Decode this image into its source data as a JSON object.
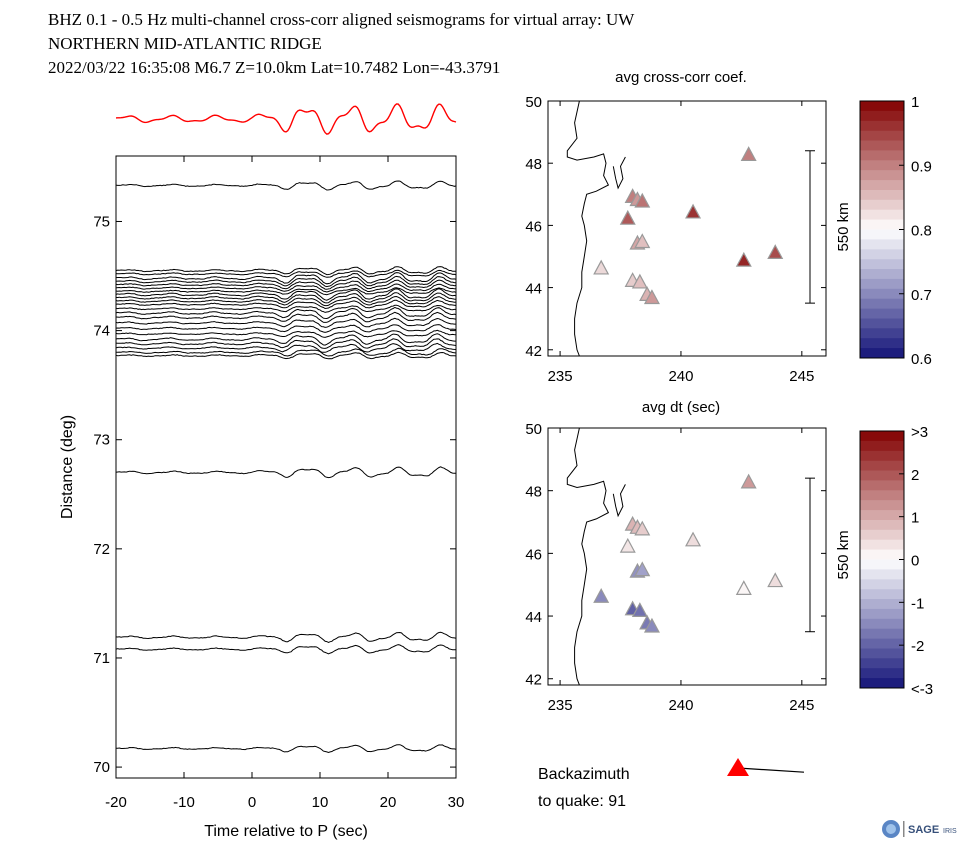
{
  "header": {
    "line1": "BHZ  0.1 - 0.5 Hz  multi-channel cross-corr aligned seismograms for virtual array: UW",
    "line2": "NORTHERN MID-ATLANTIC RIDGE",
    "line3": "2022/03/22  16:35:08  M6.7  Z=10.0km Lat=10.7482 Lon=-43.3791"
  },
  "colors": {
    "stack": "#ff0000",
    "trace": "#000000",
    "backazimuth": "#ff0000"
  },
  "chart_data": [
    {
      "type": "line",
      "name": "record-section",
      "xlabel": "Time relative to P (sec)",
      "ylabel": "Distance (deg)",
      "xlim": [
        -20,
        30
      ],
      "ylim": [
        69.9,
        75.6
      ],
      "xticks": [
        "-20",
        "-10",
        "0",
        "10",
        "20",
        "30"
      ],
      "yticks": [
        "70",
        "71",
        "72",
        "73",
        "74",
        "75"
      ],
      "trace_distances": [
        75.33,
        74.55,
        74.52,
        74.48,
        74.45,
        74.42,
        74.39,
        74.36,
        74.33,
        74.3,
        74.27,
        74.24,
        74.2,
        74.16,
        74.12,
        74.07,
        74.02,
        73.97,
        73.92,
        73.88,
        73.84,
        73.8,
        73.77,
        72.7,
        71.19,
        71.08,
        70.17
      ]
    },
    {
      "type": "scatter",
      "name": "cross-correlation-map",
      "title": "avg cross-corr coef.",
      "xticks": [
        "235",
        "240",
        "245"
      ],
      "yticks": [
        "42",
        "44",
        "46",
        "48",
        "50"
      ],
      "xlim": [
        234.5,
        246
      ],
      "ylim": [
        41.8,
        50
      ],
      "scale_label": "550 km",
      "colorbar": {
        "min": 0.6,
        "max": 1.0,
        "ticks": [
          "0.6",
          "0.7",
          "0.8",
          "0.9",
          "1"
        ]
      },
      "points": [
        {
          "lon": 242.8,
          "lat": 48.25,
          "value": 0.9
        },
        {
          "lon": 240.5,
          "lat": 46.4,
          "value": 0.96
        },
        {
          "lon": 238.0,
          "lat": 46.9,
          "value": 0.9
        },
        {
          "lon": 238.2,
          "lat": 46.8,
          "value": 0.88
        },
        {
          "lon": 238.4,
          "lat": 46.75,
          "value": 0.91
        },
        {
          "lon": 237.8,
          "lat": 46.2,
          "value": 0.93
        },
        {
          "lon": 238.2,
          "lat": 45.4,
          "value": 0.87
        },
        {
          "lon": 238.4,
          "lat": 45.45,
          "value": 0.85
        },
        {
          "lon": 242.6,
          "lat": 44.85,
          "value": 0.97
        },
        {
          "lon": 243.9,
          "lat": 45.1,
          "value": 0.94
        },
        {
          "lon": 236.7,
          "lat": 44.6,
          "value": 0.83
        },
        {
          "lon": 238.0,
          "lat": 44.2,
          "value": 0.84
        },
        {
          "lon": 238.3,
          "lat": 44.15,
          "value": 0.85
        },
        {
          "lon": 238.6,
          "lat": 43.75,
          "value": 0.86
        },
        {
          "lon": 238.8,
          "lat": 43.65,
          "value": 0.88
        }
      ]
    },
    {
      "type": "scatter",
      "name": "dt-map",
      "title": "avg dt (sec)",
      "xticks": [
        "235",
        "240",
        "245"
      ],
      "yticks": [
        "42",
        "44",
        "46",
        "48",
        "50"
      ],
      "xlim": [
        234.5,
        246
      ],
      "ylim": [
        41.8,
        50
      ],
      "scale_label": "550 km",
      "colorbar": {
        "min": -3,
        "max": 3,
        "ticks": [
          ">3",
          "2",
          "1",
          "0",
          "-1",
          "-2",
          "<-3"
        ]
      },
      "points": [
        {
          "lon": 242.8,
          "lat": 48.25,
          "value": 1.2
        },
        {
          "lon": 240.5,
          "lat": 46.4,
          "value": 0.4
        },
        {
          "lon": 238.0,
          "lat": 46.9,
          "value": 0.9
        },
        {
          "lon": 238.2,
          "lat": 46.8,
          "value": 0.8
        },
        {
          "lon": 238.4,
          "lat": 46.75,
          "value": 0.6
        },
        {
          "lon": 237.8,
          "lat": 46.2,
          "value": 0.3
        },
        {
          "lon": 238.2,
          "lat": 45.4,
          "value": -1.4
        },
        {
          "lon": 238.4,
          "lat": 45.45,
          "value": -1.2
        },
        {
          "lon": 242.6,
          "lat": 44.85,
          "value": 0.1
        },
        {
          "lon": 243.9,
          "lat": 45.1,
          "value": 0.4
        },
        {
          "lon": 236.7,
          "lat": 44.6,
          "value": -1.5
        },
        {
          "lon": 238.0,
          "lat": 44.2,
          "value": -2.0
        },
        {
          "lon": 238.3,
          "lat": 44.15,
          "value": -1.8
        },
        {
          "lon": 238.6,
          "lat": 43.75,
          "value": -1.7
        },
        {
          "lon": 238.8,
          "lat": 43.65,
          "value": -1.5
        }
      ]
    }
  ],
  "backazimuth": {
    "label_line1": "Backazimuth",
    "label_line2": "to quake:  91",
    "value_deg": 91
  },
  "logo": {
    "icon": "iris-globe-icon",
    "text": "SAGE",
    "text_small": "IRIS"
  }
}
